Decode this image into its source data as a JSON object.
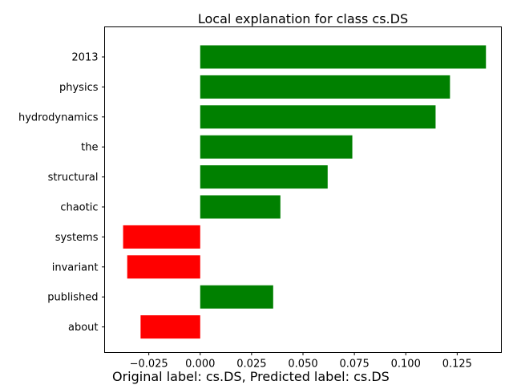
{
  "chart_data": {
    "type": "bar",
    "orientation": "horizontal",
    "title": "Local explanation for class cs.DS",
    "xlabel": "",
    "ylabel": "",
    "categories": [
      "2013",
      "physics",
      "hydrodynamics",
      "the",
      "structural",
      "chaotic",
      "systems",
      "invariant",
      "published",
      "about"
    ],
    "values": [
      0.139,
      0.1215,
      0.1145,
      0.074,
      0.062,
      0.039,
      -0.0375,
      -0.0355,
      0.0355,
      -0.029
    ],
    "xlim": [
      -0.0465,
      0.1465
    ],
    "xticks": [
      -0.025,
      0.0,
      0.025,
      0.05,
      0.075,
      0.1,
      0.125
    ],
    "xtick_labels": [
      "−0.025",
      "0.000",
      "0.025",
      "0.050",
      "0.075",
      "0.100",
      "0.125"
    ],
    "grid": false,
    "legend": "none",
    "colors": {
      "positive": "#008000",
      "negative": "#ff0000"
    }
  },
  "caption": "Original label: cs.DS, Predicted label: cs.DS"
}
